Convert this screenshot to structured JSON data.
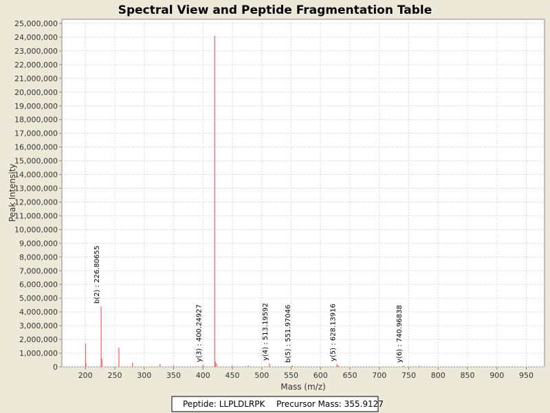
{
  "chart_data": {
    "type": "stem",
    "title": "Spectral View and Peptide Fragmentation Table",
    "xlabel": "Mass (m/z)",
    "ylabel": "Peak Intensity",
    "x": [
      200.2,
      201.0,
      226.8,
      228.0,
      257.0,
      280.0,
      327.0,
      350.0,
      400.2,
      420.0,
      421.0,
      423.0,
      450.0,
      477.0,
      513.2,
      552.0,
      628.1,
      630.0,
      741.0,
      768.0
    ],
    "values": [
      1700000,
      300000,
      4400000,
      600000,
      1400000,
      300000,
      200000,
      100000,
      150000,
      24100000,
      400000,
      250000,
      100000,
      100000,
      250000,
      100000,
      200000,
      100000,
      100000,
      80000
    ],
    "color": "#ff5a5a",
    "xlim": [
      160,
      981
    ],
    "ylim": [
      0,
      25300000
    ],
    "xticks": [
      200,
      250,
      300,
      350,
      400,
      450,
      500,
      550,
      600,
      650,
      700,
      750,
      800,
      850,
      900,
      950
    ],
    "yticks": [
      {
        "value": 0,
        "label": "0"
      },
      {
        "value": 1000000,
        "label": "1,000,000"
      },
      {
        "value": 2000000,
        "label": "2,000,000"
      },
      {
        "value": 3000000,
        "label": "3,000,000"
      },
      {
        "value": 4000000,
        "label": "4,000,000"
      },
      {
        "value": 5000000,
        "label": "5,000,000"
      },
      {
        "value": 6000000,
        "label": "6,000,000"
      },
      {
        "value": 7000000,
        "label": "7,000,000"
      },
      {
        "value": 8000000,
        "label": "8,000,000"
      },
      {
        "value": 9000000,
        "label": "9,000,000"
      },
      {
        "value": 10000000,
        "label": "10,000,000"
      },
      {
        "value": 11000000,
        "label": "11,000,000"
      },
      {
        "value": 12000000,
        "label": "12,000,000"
      },
      {
        "value": 13000000,
        "label": "13,000,000"
      },
      {
        "value": 14000000,
        "label": "14,000,000"
      },
      {
        "value": 15000000,
        "label": "15,000,000"
      },
      {
        "value": 16000000,
        "label": "16,000,000"
      },
      {
        "value": 17000000,
        "label": "17,000,000"
      },
      {
        "value": 18000000,
        "label": "18,000,000"
      },
      {
        "value": 19000000,
        "label": "19,000,000"
      },
      {
        "value": 20000000,
        "label": "20,000,000"
      },
      {
        "value": 21000000,
        "label": "21,000,000"
      },
      {
        "value": 22000000,
        "label": "22,000,000"
      },
      {
        "value": 23000000,
        "label": "23,000,000"
      },
      {
        "value": 24000000,
        "label": "24,000,000"
      },
      {
        "value": 25000000,
        "label": "25,000,000"
      }
    ],
    "grid": true,
    "annotations": [
      {
        "text": "b(2) : 226.80655",
        "x": 226.80655,
        "y": 4400000
      },
      {
        "text": "y(3) : 400.24927",
        "x": 400.24927,
        "y": 150000
      },
      {
        "text": "y(4) : 513.19592",
        "x": 513.19592,
        "y": 250000
      },
      {
        "text": "b(5) : 551.97046",
        "x": 551.97046,
        "y": 100000
      },
      {
        "text": "y(5) : 628.13916",
        "x": 628.13916,
        "y": 200000
      },
      {
        "text": "y(6) : 740.96838",
        "x": 740.96838,
        "y": 100000
      }
    ],
    "footer": {
      "peptide": "Peptide: LLPLDLRPK",
      "precursor": "Precursor Mass: 355.9127"
    }
  }
}
